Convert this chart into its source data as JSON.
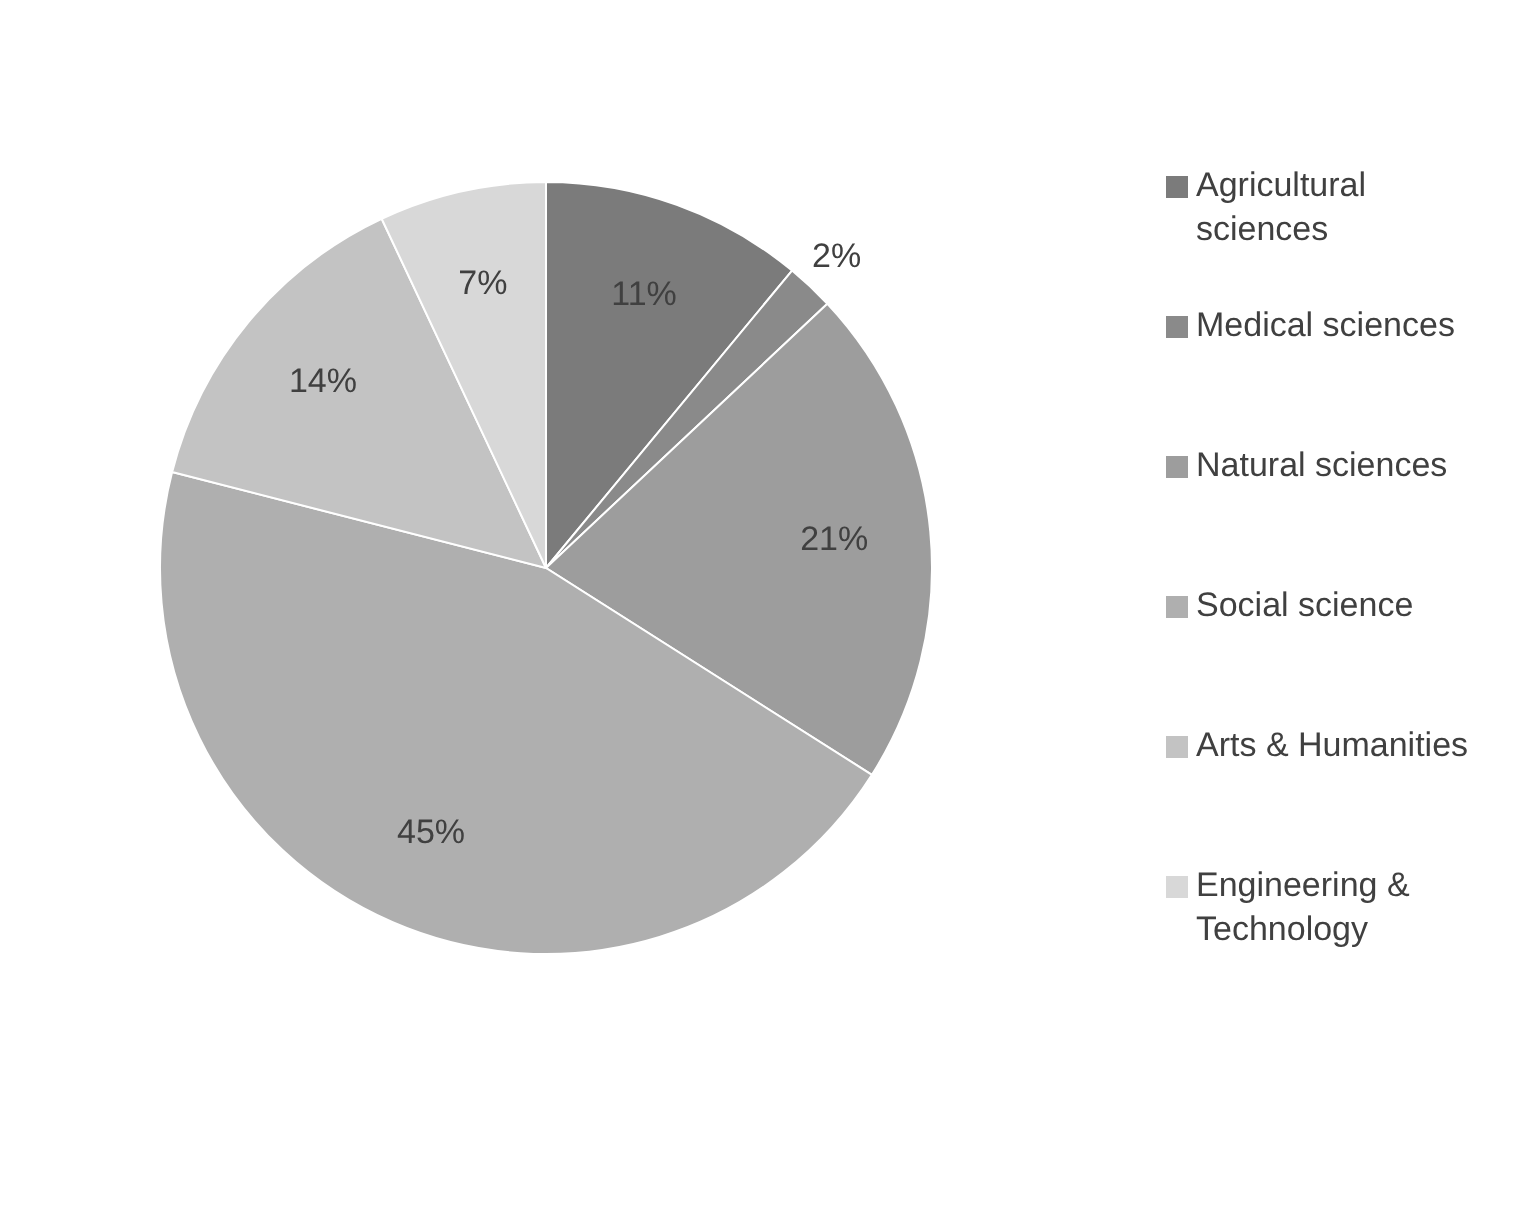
{
  "chart_data": {
    "type": "pie",
    "categories": [
      "Agricultural sciences",
      "Medical sciences",
      "Natural sciences",
      "Social science",
      "Arts & Humanities",
      "Engineering & Technology"
    ],
    "values": [
      11,
      2,
      21,
      45,
      14,
      7
    ],
    "colors": [
      "#7b7b7b",
      "#8a8a8a",
      "#9d9d9d",
      "#afafaf",
      "#c3c3c3",
      "#d8d8d8"
    ],
    "value_labels": [
      "11%",
      "2%",
      "21%",
      "45%",
      "14%",
      "7%"
    ],
    "legend": "right"
  }
}
